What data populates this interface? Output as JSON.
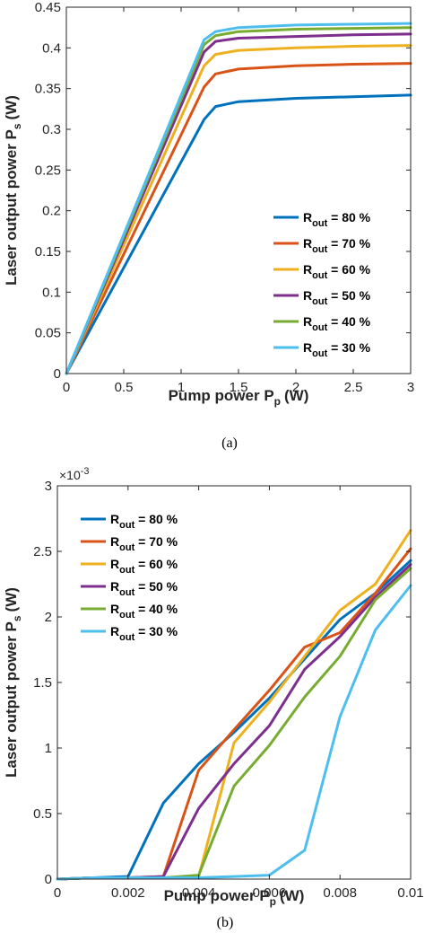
{
  "chart_data": [
    {
      "type": "line",
      "caption": "(a)",
      "xlabel": "Pump power P",
      "xlabel_sub": "p",
      "xlabel_unit": "(W)",
      "ylabel": "Laser output power P",
      "ylabel_sub": "s",
      "ylabel_unit": "(W)",
      "xlim": [
        0,
        3
      ],
      "ylim": [
        0,
        0.45
      ],
      "xticks": [
        "0",
        "0.5",
        "1",
        "1.5",
        "2",
        "2.5",
        "3"
      ],
      "yticks": [
        "0",
        "0.05",
        "0.1",
        "0.15",
        "0.2",
        "0.25",
        "0.3",
        "0.35",
        "0.4",
        "0.45"
      ],
      "grid": false,
      "legend_position": "lower-right",
      "series": [
        {
          "name": "R",
          "sub": "out",
          "suffix": " = 80 %",
          "color": "#0072BD",
          "x": [
            0,
            1.2,
            1.3,
            1.5,
            2.0,
            2.5,
            3.0
          ],
          "y": [
            0,
            0.312,
            0.328,
            0.334,
            0.338,
            0.34,
            0.342
          ]
        },
        {
          "name": "R",
          "sub": "out",
          "suffix": " = 70 %",
          "color": "#D95319",
          "x": [
            0,
            1.2,
            1.3,
            1.5,
            2.0,
            2.5,
            3.0
          ],
          "y": [
            0,
            0.352,
            0.368,
            0.374,
            0.378,
            0.38,
            0.381
          ]
        },
        {
          "name": "R",
          "sub": "out",
          "suffix": " = 60 %",
          "color": "#EDB120",
          "x": [
            0,
            1.2,
            1.3,
            1.5,
            2.0,
            2.5,
            3.0
          ],
          "y": [
            0,
            0.378,
            0.392,
            0.397,
            0.4,
            0.402,
            0.403
          ]
        },
        {
          "name": "R",
          "sub": "out",
          "suffix": " = 50 %",
          "color": "#7E2F8E",
          "x": [
            0,
            1.2,
            1.3,
            1.5,
            2.0,
            2.5,
            3.0
          ],
          "y": [
            0,
            0.395,
            0.408,
            0.412,
            0.414,
            0.416,
            0.417
          ]
        },
        {
          "name": "R",
          "sub": "out",
          "suffix": " = 40 %",
          "color": "#77AC30",
          "x": [
            0,
            1.2,
            1.3,
            1.5,
            2.0,
            2.5,
            3.0
          ],
          "y": [
            0,
            0.404,
            0.415,
            0.42,
            0.423,
            0.424,
            0.425
          ]
        },
        {
          "name": "R",
          "sub": "out",
          "suffix": " = 30 %",
          "color": "#4DBEEE",
          "x": [
            0,
            1.2,
            1.3,
            1.5,
            2.0,
            2.5,
            3.0
          ],
          "y": [
            0,
            0.41,
            0.42,
            0.425,
            0.428,
            0.429,
            0.43
          ]
        }
      ]
    },
    {
      "type": "line",
      "caption": "(b)",
      "xlabel": "Pump power P",
      "xlabel_sub": "p",
      "xlabel_unit": "(W)",
      "ylabel": "Laser output power P",
      "ylabel_sub": "s",
      "ylabel_unit": "(W)",
      "y_exponent_base": "×10",
      "y_exponent_power": "-3",
      "xlim": [
        0,
        0.01
      ],
      "ylim": [
        0,
        0.003
      ],
      "xticks": [
        "0",
        "0.002",
        "0.004",
        "0.006",
        "0.008",
        "0.01"
      ],
      "yticks": [
        "0",
        "0.5",
        "1",
        "1.5",
        "2",
        "2.5",
        "3"
      ],
      "grid": false,
      "legend_position": "upper-left",
      "series": [
        {
          "name": "R",
          "sub": "out",
          "suffix": " = 80 %",
          "color": "#0072BD",
          "x": [
            0,
            0.001,
            0.002,
            0.003,
            0.004,
            0.005,
            0.006,
            0.007,
            0.008,
            0.009,
            0.01
          ],
          "y": [
            0,
            1e-05,
            2e-05,
            0.00058,
            0.00088,
            0.00112,
            0.00138,
            0.00168,
            0.00198,
            0.00218,
            0.00243
          ]
        },
        {
          "name": "R",
          "sub": "out",
          "suffix": " = 70 %",
          "color": "#D95319",
          "x": [
            0,
            0.001,
            0.002,
            0.003,
            0.004,
            0.005,
            0.006,
            0.007,
            0.008,
            0.009,
            0.01
          ],
          "y": [
            0,
            1e-05,
            1e-05,
            2e-05,
            0.00083,
            0.00114,
            0.00144,
            0.00177,
            0.00188,
            0.00218,
            0.00252
          ]
        },
        {
          "name": "R",
          "sub": "out",
          "suffix": " = 60 %",
          "color": "#EDB120",
          "x": [
            0,
            0.001,
            0.002,
            0.003,
            0.004,
            0.005,
            0.006,
            0.007,
            0.008,
            0.009,
            0.01
          ],
          "y": [
            0,
            1e-05,
            1e-05,
            1e-05,
            2e-05,
            0.00104,
            0.00135,
            0.0017,
            0.00205,
            0.00225,
            0.00266
          ]
        },
        {
          "name": "R",
          "sub": "out",
          "suffix": " = 50 %",
          "color": "#7E2F8E",
          "x": [
            0,
            0.001,
            0.002,
            0.003,
            0.004,
            0.005,
            0.006,
            0.007,
            0.008,
            0.009,
            0.01
          ],
          "y": [
            0,
            1e-05,
            1e-05,
            2e-05,
            0.00054,
            0.00088,
            0.00117,
            0.0016,
            0.00185,
            0.00215,
            0.0024
          ]
        },
        {
          "name": "R",
          "sub": "out",
          "suffix": " = 40 %",
          "color": "#77AC30",
          "x": [
            0,
            0.001,
            0.002,
            0.003,
            0.004,
            0.005,
            0.006,
            0.007,
            0.008,
            0.009,
            0.01
          ],
          "y": [
            0,
            1e-05,
            1e-05,
            1e-05,
            3e-05,
            0.00071,
            0.00102,
            0.00139,
            0.0017,
            0.00213,
            0.00237
          ]
        },
        {
          "name": "R",
          "sub": "out",
          "suffix": " = 30 %",
          "color": "#4DBEEE",
          "x": [
            0,
            0.001,
            0.002,
            0.003,
            0.004,
            0.005,
            0.006,
            0.007,
            0.008,
            0.009,
            0.01
          ],
          "y": [
            0,
            1e-05,
            1e-05,
            1e-05,
            1e-05,
            2e-05,
            3e-05,
            0.00022,
            0.00124,
            0.0019,
            0.00224
          ]
        }
      ]
    }
  ]
}
